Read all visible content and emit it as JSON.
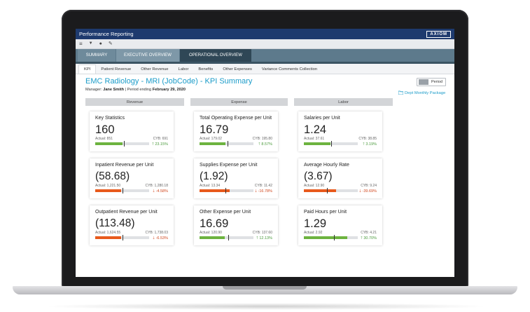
{
  "app": {
    "title": "Performance Reporting",
    "logo": "AXIOM"
  },
  "toolbar": {
    "menu_icon": "≡",
    "filter_icon": "▼",
    "comment_icon": "●",
    "tools_icon": "✎"
  },
  "nav_tabs": [
    {
      "label": "SUMMARY"
    },
    {
      "label": "EXECUTIVE OVERVIEW"
    },
    {
      "label": "OPERATIONAL OVERVIEW"
    }
  ],
  "sub_tabs": [
    {
      "label": "KPI"
    },
    {
      "label": "Patient Revenue"
    },
    {
      "label": "Other Revenue"
    },
    {
      "label": "Labor"
    },
    {
      "label": "Benefits"
    },
    {
      "label": "Other Expenses"
    },
    {
      "label": "Variance Comments Collection"
    }
  ],
  "header": {
    "title": "EMC Radiology - MRI (JobCode) - KPI Summary",
    "manager_prefix": "Manager:",
    "manager": "Jane Smith",
    "period_prefix": "| Period ending",
    "period_end": "February 29, 2020",
    "period_button": "Period",
    "dept_link": "Dept Monthly Package"
  },
  "sections": [
    {
      "label": "Revenue"
    },
    {
      "label": "Expense"
    },
    {
      "label": "Labor"
    }
  ],
  "colors": {
    "good": "#6db33f",
    "bad": "#e85a1c",
    "title_blue": "#1c9cc9"
  },
  "cards": [
    {
      "title": "Key Statistics",
      "value": "160",
      "actual": "Actual: 851",
      "cyb": "CYB: 691",
      "change": "23.15%",
      "direction": "up",
      "progress": 0.5,
      "marker": 0.53,
      "status": "good"
    },
    {
      "title": "Total Operating Expense per Unit",
      "value": "16.79",
      "actual": "Actual: 179.02",
      "cyb": "CYB: 195.80",
      "change": "8.57%",
      "direction": "up",
      "progress": 0.48,
      "marker": 0.52,
      "status": "good"
    },
    {
      "title": "Salaries per Unit",
      "value": "1.24",
      "actual": "Actual: 37.61",
      "cyb": "CYB: 38.85",
      "change": "3.19%",
      "direction": "up",
      "progress": 0.49,
      "marker": 0.51,
      "status": "good"
    },
    {
      "title": "Inpatient Revenue per Unit",
      "value": "(58.68)",
      "actual": "Actual: 1,221.50",
      "cyb": "CYB: 1,280.18",
      "change": "-4.58%",
      "direction": "down",
      "progress": 0.48,
      "marker": 0.5,
      "status": "bad"
    },
    {
      "title": "Supplies Expense per Unit",
      "value": "(1.92)",
      "actual": "Actual: 13.34",
      "cyb": "CYB: 11.42",
      "change": "-16.78%",
      "direction": "down",
      "progress": 0.56,
      "marker": 0.48,
      "status": "bad"
    },
    {
      "title": "Average Hourly Rate",
      "value": "(3.67)",
      "actual": "Actual: 12.90",
      "cyb": "CYB: 9.24",
      "change": "-39.69%",
      "direction": "down",
      "progress": 0.6,
      "marker": 0.43,
      "status": "bad"
    },
    {
      "title": "Outpatient Revenue per Unit",
      "value": "(113.48)",
      "actual": "Actual: 1,624.55",
      "cyb": "CYB: 1,738.03",
      "change": "-6.53%",
      "direction": "down",
      "progress": 0.48,
      "marker": 0.51,
      "status": "bad"
    },
    {
      "title": "Other Expense per Unit",
      "value": "16.69",
      "actual": "Actual: 120.90",
      "cyb": "CYB: 137.60",
      "change": "12.13%",
      "direction": "up",
      "progress": 0.47,
      "marker": 0.53,
      "status": "good"
    },
    {
      "title": "Paid Hours per Unit",
      "value": "1.29",
      "actual": "Actual: 2.92",
      "cyb": "CYB: 4.21",
      "change": "30.70%",
      "direction": "up",
      "progress": 0.8,
      "marker": 0.56,
      "status": "good"
    }
  ]
}
